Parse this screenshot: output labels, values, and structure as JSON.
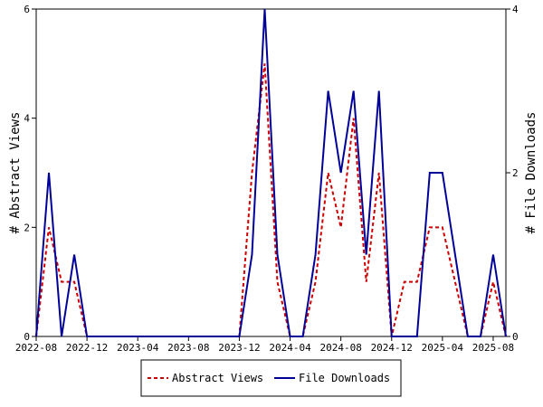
{
  "chart_data": {
    "type": "line",
    "title": "",
    "x_tick_labels": [
      "2022-08",
      "2022-12",
      "2023-04",
      "2023-08",
      "2023-12",
      "2024-04",
      "2024-08",
      "2024-12",
      "2025-04",
      "2025-08"
    ],
    "y_left": {
      "label": "# Abstract Views",
      "range": [
        0,
        6
      ],
      "ticks": [
        "0",
        "2",
        "4",
        "6"
      ]
    },
    "y_right": {
      "label": "# File Downloads",
      "range": [
        0,
        4
      ],
      "ticks": [
        "0",
        "2",
        "4"
      ]
    },
    "x": [
      "2022-08",
      "2022-09",
      "2022-10",
      "2022-11",
      "2022-12",
      "2023-01",
      "2023-02",
      "2023-03",
      "2023-04",
      "2023-05",
      "2023-06",
      "2023-07",
      "2023-08",
      "2023-09",
      "2023-10",
      "2023-11",
      "2023-12",
      "2024-01",
      "2024-02",
      "2024-03",
      "2024-04",
      "2024-05",
      "2024-06",
      "2024-07",
      "2024-08",
      "2024-09",
      "2024-10",
      "2024-11",
      "2024-12",
      "2025-01",
      "2025-02",
      "2025-03",
      "2025-04",
      "2025-05",
      "2025-06",
      "2025-07",
      "2025-08",
      "2025-09"
    ],
    "series": [
      {
        "name": "Abstract Views",
        "axis": "left",
        "color": "#cc0000",
        "style": "dashed",
        "values": [
          0,
          2,
          1,
          1,
          0,
          0,
          0,
          0,
          0,
          0,
          0,
          0,
          0,
          0,
          0,
          0,
          0,
          3,
          5,
          1,
          0,
          0,
          1,
          3,
          2,
          4,
          1,
          3,
          0,
          1,
          1,
          2,
          2,
          1,
          0,
          0,
          1,
          0
        ]
      },
      {
        "name": "File Downloads",
        "axis": "right",
        "color": "#000099",
        "style": "solid",
        "values": [
          0,
          2,
          0,
          1,
          0,
          0,
          0,
          0,
          0,
          0,
          0,
          0,
          0,
          0,
          0,
          0,
          0,
          1,
          4,
          1,
          0,
          0,
          1,
          3,
          2,
          3,
          1,
          3,
          0,
          0,
          0,
          2,
          2,
          1,
          0,
          0,
          1,
          0
        ]
      }
    ],
    "grid": false,
    "legend_position": "bottom"
  }
}
